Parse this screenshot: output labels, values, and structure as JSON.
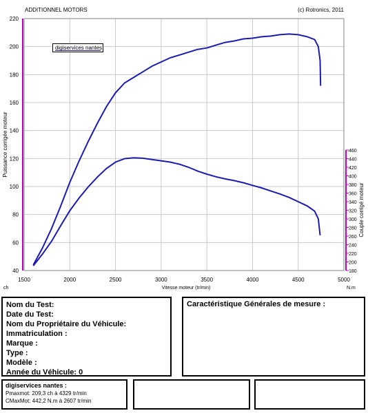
{
  "header": {
    "title": "ADDITIONNEL MOTORS",
    "copyright": "(c) Rotronics, 2011"
  },
  "legend": {
    "label": "digiservices nantes"
  },
  "chart_data": {
    "type": "line",
    "xlabel": "Vitesse moteur (tr/min)",
    "xlim": [
      1500,
      5000
    ],
    "x_ticks": [
      "1500",
      "2000",
      "2500",
      "3000",
      "3500",
      "4000",
      "4500",
      "5000"
    ],
    "x_unit_left": "ch",
    "x_unit_right": "N.m",
    "y_left": {
      "label": "Puissance corrigée moteur",
      "lim": [
        40,
        220
      ],
      "ticks": [
        "40",
        "60",
        "80",
        "100",
        "120",
        "140",
        "160",
        "180",
        "200",
        "220"
      ]
    },
    "y_right": {
      "label": "Couple corrigé moteur",
      "lim": [
        180,
        460
      ],
      "ticks": [
        "180",
        "200",
        "220",
        "240",
        "260",
        "280",
        "300",
        "320",
        "340",
        "360",
        "380",
        "400",
        "420",
        "440",
        "460"
      ]
    },
    "series": [
      {
        "axis": "left",
        "color": "#1a1ab0",
        "points": [
          [
            1600,
            44
          ],
          [
            1700,
            56
          ],
          [
            1800,
            70
          ],
          [
            1900,
            86
          ],
          [
            2000,
            103
          ],
          [
            2100,
            118
          ],
          [
            2200,
            132
          ],
          [
            2300,
            145
          ],
          [
            2400,
            157
          ],
          [
            2500,
            167
          ],
          [
            2600,
            174
          ],
          [
            2700,
            178
          ],
          [
            2800,
            182
          ],
          [
            2900,
            186
          ],
          [
            3000,
            189
          ],
          [
            3100,
            192
          ],
          [
            3200,
            194
          ],
          [
            3300,
            196
          ],
          [
            3400,
            198
          ],
          [
            3500,
            199
          ],
          [
            3600,
            201
          ],
          [
            3700,
            203
          ],
          [
            3800,
            204
          ],
          [
            3900,
            205.5
          ],
          [
            4000,
            206
          ],
          [
            4100,
            207
          ],
          [
            4200,
            207.5
          ],
          [
            4300,
            208.5
          ],
          [
            4400,
            209
          ],
          [
            4500,
            208.5
          ],
          [
            4600,
            207
          ],
          [
            4680,
            205
          ],
          [
            4720,
            200
          ],
          [
            4740,
            190
          ],
          [
            4745,
            172
          ]
        ]
      },
      {
        "axis": "right",
        "color": "#1a1ab0",
        "points": [
          [
            1600,
            191
          ],
          [
            1700,
            218
          ],
          [
            1800,
            248
          ],
          [
            1900,
            284
          ],
          [
            2000,
            319
          ],
          [
            2100,
            348
          ],
          [
            2200,
            374
          ],
          [
            2300,
            397
          ],
          [
            2400,
            417
          ],
          [
            2500,
            432
          ],
          [
            2600,
            440
          ],
          [
            2700,
            442
          ],
          [
            2800,
            441
          ],
          [
            2900,
            438
          ],
          [
            3000,
            435
          ],
          [
            3100,
            432
          ],
          [
            3200,
            427
          ],
          [
            3300,
            420
          ],
          [
            3400,
            411
          ],
          [
            3500,
            404
          ],
          [
            3600,
            398
          ],
          [
            3700,
            393
          ],
          [
            3800,
            389
          ],
          [
            3900,
            384
          ],
          [
            4000,
            378
          ],
          [
            4100,
            372
          ],
          [
            4200,
            365
          ],
          [
            4300,
            358
          ],
          [
            4400,
            350
          ],
          [
            4500,
            340
          ],
          [
            4600,
            330
          ],
          [
            4680,
            318
          ],
          [
            4720,
            300
          ],
          [
            4740,
            262
          ]
        ]
      }
    ]
  },
  "info": {
    "nom_test": "Nom du Test:",
    "date_test": "Date du Test:",
    "proprietaire": "Nom du Propriétaire du Véhicule:",
    "immatriculation": "Immatriculation  :",
    "marque": "Marque  :",
    "type": "Type  :",
    "modele": "Modèle  :",
    "annee": "Année du Véhicule: 0"
  },
  "carac": {
    "title": "Caractéristique Générales de mesure :"
  },
  "summary": {
    "title": "digiservices nantes :",
    "pmax": "Pmaxmot: 209,3 ch à 4329 tr/min",
    "cmax": "CMaxMot: 442,2 N.m à 2607 tr/min"
  }
}
